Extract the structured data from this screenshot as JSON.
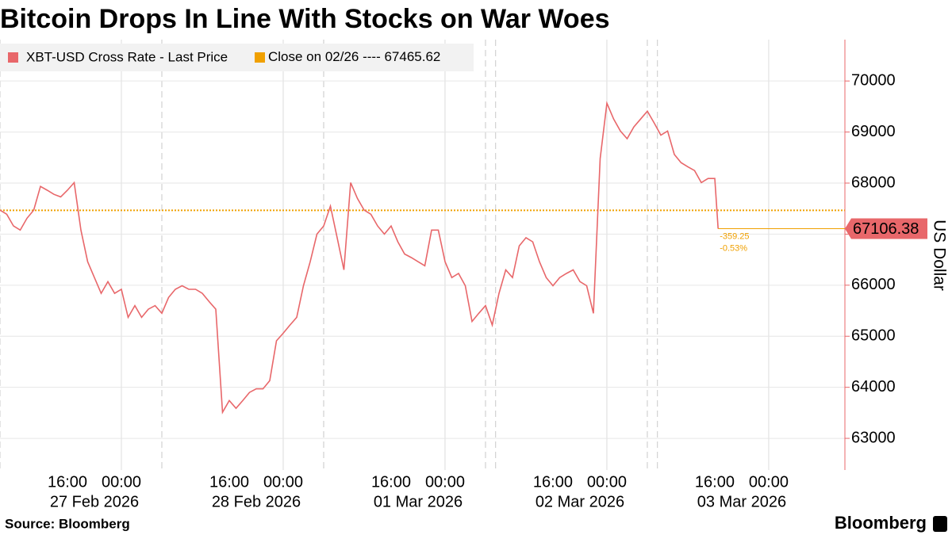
{
  "chart_data": {
    "type": "line",
    "title": "Bitcoin Drops In Line With Stocks on War Woes",
    "y_label": "US Dollar",
    "source": "Source: Bloomberg",
    "logo": "Bloomberg",
    "x": [
      "2026-02-27 06:00",
      "2026-02-27 07:00",
      "2026-02-27 08:00",
      "2026-02-27 09:00",
      "2026-02-27 10:00",
      "2026-02-27 11:00",
      "2026-02-27 12:00",
      "2026-02-27 13:00",
      "2026-02-27 14:00",
      "2026-02-27 15:00",
      "2026-02-27 16:00",
      "2026-02-27 17:00",
      "2026-02-27 18:00",
      "2026-02-27 19:00",
      "2026-02-27 20:00",
      "2026-02-27 21:00",
      "2026-02-27 22:00",
      "2026-02-27 23:00",
      "2026-02-28 00:00",
      "2026-02-28 01:00",
      "2026-02-28 02:00",
      "2026-02-28 03:00",
      "2026-02-28 04:00",
      "2026-02-28 05:00",
      "2026-02-28 06:00",
      "2026-02-28 07:00",
      "2026-02-28 08:00",
      "2026-02-28 09:00",
      "2026-02-28 10:00",
      "2026-02-28 11:00",
      "2026-02-28 12:00",
      "2026-02-28 13:00",
      "2026-02-28 14:00",
      "2026-02-28 15:00",
      "2026-02-28 16:00",
      "2026-02-28 17:00",
      "2026-02-28 18:00",
      "2026-02-28 19:00",
      "2026-02-28 20:00",
      "2026-02-28 21:00",
      "2026-02-28 22:00",
      "2026-02-28 23:00",
      "2026-03-01 00:00",
      "2026-03-01 01:00",
      "2026-03-01 02:00",
      "2026-03-01 03:00",
      "2026-03-01 04:00",
      "2026-03-01 05:00",
      "2026-03-01 06:00",
      "2026-03-01 07:00",
      "2026-03-01 08:00",
      "2026-03-01 09:00",
      "2026-03-01 10:00",
      "2026-03-01 11:00",
      "2026-03-01 12:00",
      "2026-03-01 13:00",
      "2026-03-01 14:00",
      "2026-03-01 15:00",
      "2026-03-01 16:00",
      "2026-03-01 17:00",
      "2026-03-01 18:00",
      "2026-03-01 19:00",
      "2026-03-01 20:00",
      "2026-03-01 21:00",
      "2026-03-01 22:00",
      "2026-03-01 23:00",
      "2026-03-02 00:00",
      "2026-03-02 01:00",
      "2026-03-02 02:00",
      "2026-03-02 03:00",
      "2026-03-02 04:00",
      "2026-03-02 05:00",
      "2026-03-02 06:00",
      "2026-03-02 07:00",
      "2026-03-02 08:00",
      "2026-03-02 09:00",
      "2026-03-02 10:00",
      "2026-03-02 11:00",
      "2026-03-02 12:00",
      "2026-03-02 13:00",
      "2026-03-02 14:00",
      "2026-03-02 15:00",
      "2026-03-02 16:00",
      "2026-03-02 17:00",
      "2026-03-02 18:00",
      "2026-03-02 19:00",
      "2026-03-02 20:00",
      "2026-03-02 21:00",
      "2026-03-02 22:00",
      "2026-03-02 23:00",
      "2026-03-03 00:00",
      "2026-03-03 01:00",
      "2026-03-03 02:00",
      "2026-03-03 03:00",
      "2026-03-03 04:00",
      "2026-03-03 05:00",
      "2026-03-03 06:00",
      "2026-03-03 07:00",
      "2026-03-03 08:00",
      "2026-03-03 09:00",
      "2026-03-03 10:00",
      "2026-03-03 11:00",
      "2026-03-03 12:00",
      "2026-03-03 13:00",
      "2026-03-03 14:00",
      "2026-03-03 15:00",
      "2026-03-03 16:00",
      "2026-03-03 16:30"
    ],
    "series": [
      {
        "name": "XBT-USD Cross Rate - Last Price",
        "color": "#e8676a",
        "values": [
          67470,
          67390,
          67160,
          67080,
          67310,
          67470,
          67935,
          67860,
          67780,
          67730,
          67860,
          68010,
          67080,
          66460,
          66150,
          65840,
          66070,
          65840,
          65920,
          65370,
          65600,
          65370,
          65530,
          65600,
          65450,
          65760,
          65920,
          65990,
          65920,
          65920,
          65840,
          65680,
          65530,
          63510,
          63740,
          63590,
          63740,
          63900,
          63970,
          63970,
          64130,
          64910,
          65060,
          65220,
          65370,
          65990,
          66460,
          67000,
          67160,
          67550,
          66930,
          66300,
          68010,
          67700,
          67470,
          67390,
          67160,
          67000,
          67160,
          66850,
          66610,
          66540,
          66460,
          66380,
          67080,
          67080,
          66460,
          66150,
          66230,
          65990,
          65290,
          65450,
          65600,
          65220,
          65840,
          66300,
          66150,
          66770,
          66930,
          66850,
          66460,
          66150,
          65990,
          66150,
          66230,
          66300,
          66070,
          65990,
          65450,
          68480,
          69565,
          69255,
          69020,
          68870,
          69100,
          69255,
          69410,
          69180,
          68940,
          69020,
          68560,
          68400,
          68320,
          68245,
          68010,
          68090,
          68090,
          67106.38
        ]
      }
    ],
    "reference_line": {
      "label": "Close on 02/26 ----",
      "value": 67465.62,
      "color": "#f0a000"
    },
    "change": [
      -359.25,
      {
        "value": -0.53,
        "label": "-0.53%"
      }
    ],
    "xlim": [
      "2026-02-27 06:00",
      "2026-03-04 11:18"
    ],
    "ylim": [
      62380,
      70810
    ],
    "yticks": [
      63000,
      64000,
      65000,
      66000,
      67000,
      68000,
      69000,
      70000
    ],
    "xticks": [
      {
        "value": "2026-02-27 16:00",
        "label": "16:00"
      },
      {
        "value": "2026-02-28 00:00",
        "label": "00:00"
      },
      {
        "value": "2026-02-28 16:00",
        "label": "16:00"
      },
      {
        "value": "2026-03-01 00:00",
        "label": "00:00"
      },
      {
        "value": "2026-03-01 16:00",
        "label": "16:00"
      },
      {
        "value": "2026-03-02 00:00",
        "label": "00:00"
      },
      {
        "value": "2026-03-02 16:00",
        "label": "16:00"
      },
      {
        "value": "2026-03-03 00:00",
        "label": "00:00"
      },
      {
        "value": "2026-03-03 16:00",
        "label": "16:00"
      },
      {
        "value": "2026-03-04 00:00",
        "label": "00:00"
      }
    ],
    "day_labels": [
      "27 Feb 2026",
      "28 Feb 2026",
      "01 Mar 2026",
      "02 Mar 2026",
      "03 Mar 2026"
    ],
    "xminor": [
      "2026-02-27 06:00",
      "2026-02-28 06:00",
      "2026-03-01 06:00",
      "2026-03-02 06:00",
      "2026-03-02 07:30",
      "2026-03-03 06:00",
      "2026-03-03 07:30"
    ],
    "grid": true
  }
}
